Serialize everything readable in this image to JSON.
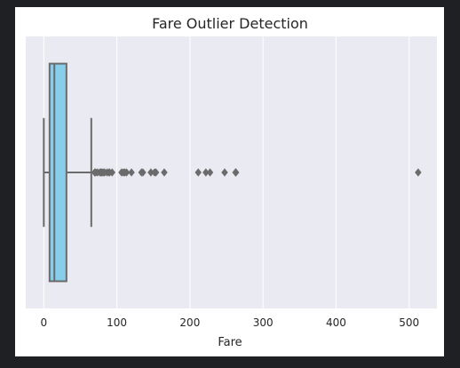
{
  "colors": {
    "page_background": "#1f2023",
    "figure_background": "#ffffff",
    "plot_background": "#eaeaf2",
    "grid": "#ffffff",
    "box_fill": "#87ceeb",
    "box_line": "#6b6b6b",
    "text": "#262626"
  },
  "chart_data": {
    "type": "box",
    "orientation": "horizontal",
    "title": "Fare Outlier Detection",
    "xlabel": "Fare",
    "ylabel": "",
    "xlim": [
      -24.7,
      538.0
    ],
    "xticks": [
      0,
      100,
      200,
      300,
      400,
      500
    ],
    "xtick_labels": [
      "0",
      "100",
      "200",
      "300",
      "400",
      "500"
    ],
    "grid": true,
    "grid_axis": "x",
    "box": {
      "min": 0,
      "q1": 7.91,
      "median": 14.45,
      "q3": 31.0,
      "max": 65.0
    },
    "outliers": [
      69.55,
      71.0,
      73.5,
      76.73,
      77.96,
      79.2,
      80.0,
      82.17,
      83.16,
      86.5,
      89.1,
      90.0,
      93.5,
      106.43,
      108.9,
      110.88,
      113.28,
      120.0,
      133.65,
      135.63,
      146.52,
      151.55,
      153.46,
      164.87,
      211.34,
      221.78,
      227.53,
      247.52,
      262.38,
      263.0,
      512.33
    ]
  }
}
